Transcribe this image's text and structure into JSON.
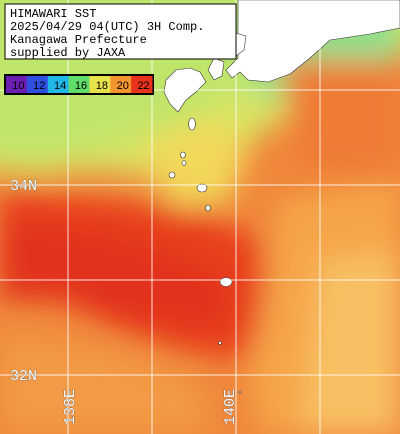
{
  "header": {
    "lines": [
      "HIMAWARI SST",
      "2025/04/29 04(UTC) 3H Comp.",
      "Kanagawa Prefecture",
      "supplied by JAXA"
    ]
  },
  "legend": {
    "ticks": [
      10,
      12,
      14,
      16,
      18,
      20,
      22
    ]
  },
  "grid": {
    "latitudes": [
      "34N",
      "32N"
    ],
    "longitudes": [
      "138E",
      "140E"
    ]
  }
}
